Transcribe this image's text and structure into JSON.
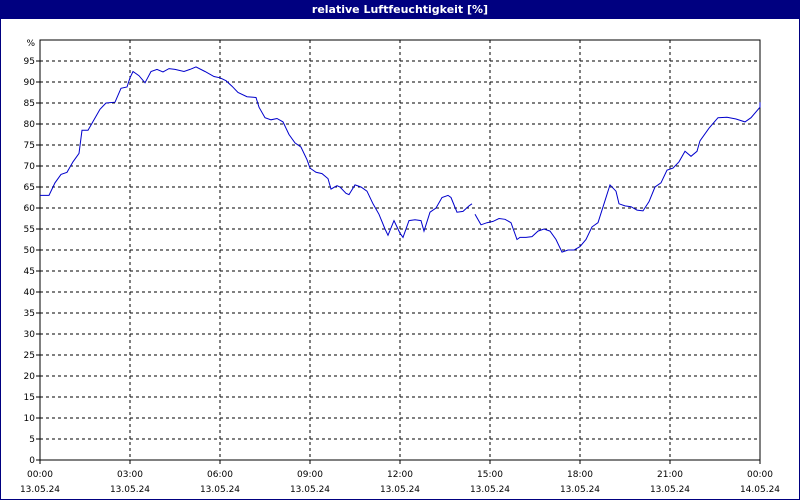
{
  "chart_data": {
    "type": "line",
    "title": "relative Luftfeuchtigkeit [%]",
    "ylabel": "%",
    "ylim": [
      0,
      100
    ],
    "yticks": [
      0,
      5,
      10,
      15,
      20,
      25,
      30,
      35,
      40,
      45,
      50,
      55,
      60,
      65,
      70,
      75,
      80,
      85,
      90,
      95
    ],
    "xlim_hours": [
      0,
      24
    ],
    "xticks": [
      {
        "hour": 0,
        "time": "00:00",
        "date": "13.05.24"
      },
      {
        "hour": 3,
        "time": "03:00",
        "date": "13.05.24"
      },
      {
        "hour": 6,
        "time": "06:00",
        "date": "13.05.24"
      },
      {
        "hour": 9,
        "time": "09:00",
        "date": "13.05.24"
      },
      {
        "hour": 12,
        "time": "12:00",
        "date": "13.05.24"
      },
      {
        "hour": 15,
        "time": "15:00",
        "date": "13.05.24"
      },
      {
        "hour": 18,
        "time": "18:00",
        "date": "13.05.24"
      },
      {
        "hour": 21,
        "time": "21:00",
        "date": "13.05.24"
      },
      {
        "hour": 24,
        "time": "00:00",
        "date": "14.05.24"
      }
    ],
    "grid": true,
    "line_color": "#0000cc",
    "series": [
      {
        "segments": [
          [
            [
              0.0,
              63
            ],
            [
              0.3,
              63
            ],
            [
              0.5,
              66
            ],
            [
              0.7,
              68
            ],
            [
              0.9,
              68.5
            ],
            [
              1.1,
              71
            ],
            [
              1.3,
              73
            ],
            [
              1.4,
              78.5
            ],
            [
              1.6,
              78.5
            ],
            [
              1.8,
              81
            ],
            [
              2.0,
              83.5
            ],
            [
              2.2,
              85
            ],
            [
              2.5,
              85.2
            ],
            [
              2.7,
              88.5
            ],
            [
              2.9,
              88.8
            ],
            [
              3.0,
              91
            ],
            [
              3.1,
              92.5
            ],
            [
              3.3,
              91.5
            ],
            [
              3.5,
              89.8
            ],
            [
              3.7,
              92.5
            ],
            [
              3.9,
              93
            ],
            [
              4.1,
              92.4
            ],
            [
              4.3,
              93.2
            ],
            [
              4.5,
              93
            ],
            [
              4.8,
              92.5
            ],
            [
              5.0,
              93
            ],
            [
              5.2,
              93.6
            ],
            [
              5.5,
              92.5
            ],
            [
              5.8,
              91.3
            ],
            [
              6.0,
              91
            ],
            [
              6.2,
              90.3
            ],
            [
              6.4,
              89
            ],
            [
              6.6,
              87.5
            ],
            [
              6.9,
              86.5
            ],
            [
              7.2,
              86.3
            ],
            [
              7.3,
              84
            ],
            [
              7.5,
              81.5
            ],
            [
              7.7,
              81
            ],
            [
              7.9,
              81.3
            ],
            [
              8.1,
              80.5
            ],
            [
              8.3,
              77.5
            ],
            [
              8.5,
              75.5
            ],
            [
              8.7,
              74.5
            ],
            [
              8.9,
              71.5
            ],
            [
              9.0,
              69.5
            ],
            [
              9.2,
              68.5
            ],
            [
              9.4,
              68.2
            ],
            [
              9.6,
              67
            ],
            [
              9.7,
              64.5
            ],
            [
              9.9,
              65.3
            ],
            [
              10.0,
              65
            ],
            [
              10.2,
              63.5
            ],
            [
              10.3,
              63.2
            ],
            [
              10.5,
              65.5
            ],
            [
              10.7,
              65
            ],
            [
              10.9,
              64
            ],
            [
              11.1,
              61
            ],
            [
              11.3,
              58.5
            ],
            [
              11.5,
              55
            ],
            [
              11.6,
              53.5
            ],
            [
              11.8,
              57
            ],
            [
              12.0,
              54
            ],
            [
              12.1,
              53
            ],
            [
              12.3,
              57
            ],
            [
              12.5,
              57.2
            ],
            [
              12.7,
              57
            ],
            [
              12.8,
              54.5
            ],
            [
              13.0,
              59
            ],
            [
              13.2,
              60
            ],
            [
              13.4,
              62.5
            ],
            [
              13.6,
              63
            ],
            [
              13.7,
              62.5
            ],
            [
              13.9,
              59
            ],
            [
              14.1,
              59.2
            ],
            [
              14.3,
              60.5
            ],
            [
              14.4,
              61
            ]
          ],
          [
            [
              14.5,
              58.5
            ],
            [
              14.7,
              56
            ],
            [
              14.9,
              56.5
            ],
            [
              15.1,
              56.8
            ],
            [
              15.3,
              57.5
            ],
            [
              15.5,
              57.3
            ],
            [
              15.7,
              56.5
            ],
            [
              15.9,
              52.5
            ],
            [
              16.0,
              53
            ],
            [
              16.2,
              53
            ],
            [
              16.4,
              53.2
            ],
            [
              16.6,
              54.5
            ],
            [
              16.8,
              55
            ],
            [
              17.0,
              54.5
            ],
            [
              17.2,
              52.5
            ],
            [
              17.4,
              49.5
            ],
            [
              17.6,
              50
            ],
            [
              17.8,
              50
            ],
            [
              18.0,
              50.8
            ],
            [
              18.2,
              52.5
            ],
            [
              18.4,
              55.5
            ],
            [
              18.6,
              56.5
            ],
            [
              18.8,
              61
            ],
            [
              19.0,
              65.5
            ],
            [
              19.2,
              64
            ],
            [
              19.3,
              61
            ],
            [
              19.5,
              60.5
            ],
            [
              19.7,
              60.3
            ],
            [
              19.9,
              59.5
            ],
            [
              20.1,
              59.3
            ],
            [
              20.3,
              61.5
            ],
            [
              20.5,
              65
            ],
            [
              20.7,
              66
            ],
            [
              20.9,
              69
            ],
            [
              21.1,
              69.5
            ],
            [
              21.3,
              71
            ],
            [
              21.5,
              73.5
            ],
            [
              21.7,
              72.3
            ],
            [
              21.9,
              73.5
            ],
            [
              22.0,
              76
            ],
            [
              22.3,
              79
            ],
            [
              22.6,
              81.5
            ],
            [
              22.9,
              81.6
            ],
            [
              23.2,
              81.2
            ],
            [
              23.5,
              80.5
            ],
            [
              23.7,
              81.5
            ],
            [
              24.0,
              84
            ],
            [
              24.3,
              85.2
            ],
            [
              24.5,
              85
            ]
          ]
        ]
      }
    ]
  }
}
